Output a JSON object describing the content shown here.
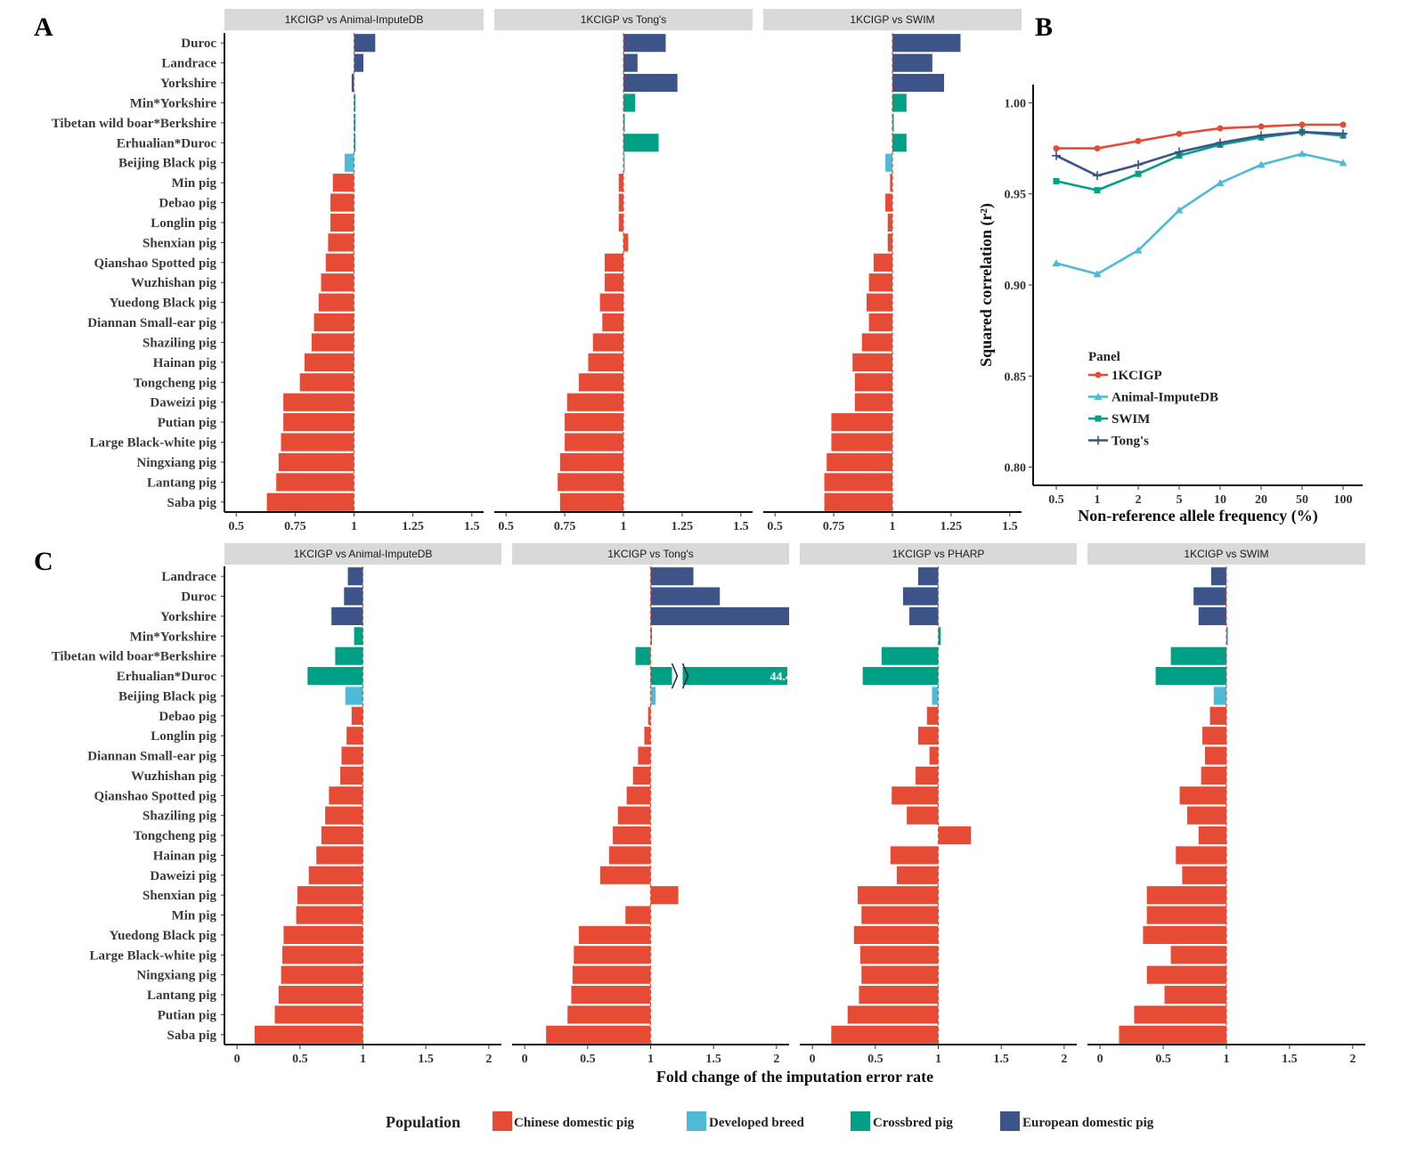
{
  "figure": {
    "panel_letters": [
      "A",
      "B",
      "C"
    ],
    "legend": {
      "title": "Population",
      "items": [
        {
          "label": "Chinese domestic pig",
          "color": "#E64B35"
        },
        {
          "label": "Developed breed",
          "color": "#4DBBD5"
        },
        {
          "label": "Crossbred pig",
          "color": "#00A087"
        },
        {
          "label": "European domestic pig",
          "color": "#3C5488"
        }
      ]
    }
  },
  "chart_data": [
    {
      "id": "A",
      "type": "bar",
      "orientation": "horizontal",
      "reference_line": 1,
      "xlim": [
        0.45,
        1.55
      ],
      "xticks": [
        0.5,
        0.75,
        1,
        1.25,
        1.5
      ],
      "xtick_labels": [
        "0.5",
        "0.75",
        "1",
        "1.25",
        "1.5"
      ],
      "categories": [
        "Duroc",
        "Landrace",
        "Yorkshire",
        "Min*Yorkshire",
        "Tibetan wild boar*Berkshire",
        "Erhualian*Duroc",
        "Beijing Black pig",
        "Min pig",
        "Debao pig",
        "Longlin pig",
        "Shenxian pig",
        "Qianshao Spotted pig",
        "Wuzhishan pig",
        "Yuedong Black pig",
        "Diannan Small-ear pig",
        "Shaziling pig",
        "Hainan pig",
        "Tongcheng pig",
        "Daweizi pig",
        "Putian pig",
        "Large Black-white pig",
        "Ningxiang pig",
        "Lantang pig",
        "Saba pig"
      ],
      "groups": [
        "European domestic pig",
        "European domestic pig",
        "European domestic pig",
        "Crossbred pig",
        "Crossbred pig",
        "Crossbred pig",
        "Developed breed",
        "Chinese domestic pig",
        "Chinese domestic pig",
        "Chinese domestic pig",
        "Chinese domestic pig",
        "Chinese domestic pig",
        "Chinese domestic pig",
        "Chinese domestic pig",
        "Chinese domestic pig",
        "Chinese domestic pig",
        "Chinese domestic pig",
        "Chinese domestic pig",
        "Chinese domestic pig",
        "Chinese domestic pig",
        "Chinese domestic pig",
        "Chinese domestic pig",
        "Chinese domestic pig",
        "Chinese domestic pig"
      ],
      "facets": [
        {
          "label": "1KCIGP vs Animal-ImputeDB",
          "values": [
            1.09,
            1.04,
            0.99,
            1.0,
            1.0,
            1.0,
            0.96,
            0.91,
            0.9,
            0.9,
            0.89,
            0.88,
            0.86,
            0.85,
            0.83,
            0.82,
            0.79,
            0.77,
            0.7,
            0.7,
            0.69,
            0.68,
            0.67,
            0.63
          ]
        },
        {
          "label": "1KCIGP vs Tong's",
          "values": [
            1.18,
            1.06,
            1.23,
            1.05,
            1.0,
            1.15,
            1.0,
            0.98,
            0.98,
            0.98,
            1.02,
            0.92,
            0.92,
            0.9,
            0.91,
            0.87,
            0.85,
            0.81,
            0.76,
            0.75,
            0.75,
            0.73,
            0.72,
            0.73
          ]
        },
        {
          "label": "1KCIGP vs SWIM",
          "values": [
            1.29,
            1.17,
            1.22,
            1.06,
            1.0,
            1.06,
            0.97,
            0.99,
            0.97,
            0.98,
            0.98,
            0.92,
            0.9,
            0.89,
            0.9,
            0.87,
            0.83,
            0.84,
            0.84,
            0.74,
            0.74,
            0.72,
            0.71,
            0.71
          ]
        }
      ]
    },
    {
      "id": "B",
      "type": "line",
      "xlabel": "Non-reference allele frequency (%)",
      "ylabel": "Squared correlation (r²)",
      "categories": [
        "0.5",
        "1",
        "2",
        "5",
        "10",
        "20",
        "50",
        "100"
      ],
      "ylim": [
        0.79,
        1.01
      ],
      "yticks": [
        0.8,
        0.85,
        0.9,
        0.95,
        1.0
      ],
      "ytick_labels": [
        "0.80",
        "0.85",
        "0.90",
        "0.95",
        "1.00"
      ],
      "legend_title": "Panel",
      "legend_position": "inside-bottom-left",
      "series": [
        {
          "name": "1KCIGP",
          "color": "#E64B35",
          "marker": "circle",
          "values": [
            0.975,
            0.975,
            0.979,
            0.983,
            0.986,
            0.987,
            0.988,
            0.988
          ]
        },
        {
          "name": "Animal-ImputeDB",
          "color": "#4DBBD5",
          "marker": "triangle",
          "values": [
            0.912,
            0.906,
            0.919,
            0.941,
            0.956,
            0.966,
            0.972,
            0.967
          ]
        },
        {
          "name": "SWIM",
          "color": "#00A087",
          "marker": "square",
          "values": [
            0.957,
            0.952,
            0.961,
            0.971,
            0.977,
            0.981,
            0.984,
            0.982
          ]
        },
        {
          "name": "Tong's",
          "color": "#3C5488",
          "marker": "cross",
          "values": [
            0.971,
            0.96,
            0.966,
            0.973,
            0.978,
            0.982,
            0.984,
            0.983
          ]
        }
      ]
    },
    {
      "id": "C",
      "type": "bar",
      "orientation": "horizontal",
      "reference_line": 1,
      "xlim": [
        -0.1,
        2.1
      ],
      "xticks": [
        0,
        0.5,
        1,
        1.5,
        2
      ],
      "xtick_labels": [
        "0",
        "0.5",
        "1",
        "1.5",
        "2"
      ],
      "xlabel": "Fold change of the imputation error rate",
      "categories": [
        "Landrace",
        "Duroc",
        "Yorkshire",
        "Min*Yorkshire",
        "Tibetan wild boar*Berkshire",
        "Erhualian*Duroc",
        "Beijing Black pig",
        "Debao pig",
        "Longlin pig",
        "Diannan Small-ear pig",
        "Wuzhishan pig",
        "Qianshao Spotted pig",
        "Shaziling pig",
        "Tongcheng pig",
        "Hainan pig",
        "Daweizi pig",
        "Shenxian pig",
        "Min pig",
        "Yuedong Black pig",
        "Large Black-white pig",
        "Ningxiang pig",
        "Lantang pig",
        "Putian pig",
        "Saba pig"
      ],
      "groups": [
        "European domestic pig",
        "European domestic pig",
        "European domestic pig",
        "Crossbred pig",
        "Crossbred pig",
        "Crossbred pig",
        "Developed breed",
        "Chinese domestic pig",
        "Chinese domestic pig",
        "Chinese domestic pig",
        "Chinese domestic pig",
        "Chinese domestic pig",
        "Chinese domestic pig",
        "Chinese domestic pig",
        "Chinese domestic pig",
        "Chinese domestic pig",
        "Chinese domestic pig",
        "Chinese domestic pig",
        "Chinese domestic pig",
        "Chinese domestic pig",
        "Chinese domestic pig",
        "Chinese domestic pig",
        "Chinese domestic pig",
        "Chinese domestic pig"
      ],
      "facets": [
        {
          "label": "1KCIGP vs Animal-ImputeDB",
          "values": [
            0.88,
            0.85,
            0.75,
            0.93,
            0.78,
            0.56,
            0.86,
            0.91,
            0.87,
            0.83,
            0.82,
            0.73,
            0.7,
            0.67,
            0.63,
            0.57,
            0.48,
            0.47,
            0.37,
            0.36,
            0.35,
            0.33,
            0.3,
            0.14
          ]
        },
        {
          "label": "1KCIGP vs Tong's",
          "values": [
            1.34,
            1.55,
            2.28,
            1.01,
            0.88,
            44.4,
            1.04,
            0.98,
            0.95,
            0.9,
            0.86,
            0.81,
            0.74,
            0.7,
            0.67,
            0.6,
            1.22,
            0.8,
            0.43,
            0.39,
            0.38,
            0.37,
            0.34,
            0.17
          ]
        },
        {
          "label": "1KCIGP vs PHARP",
          "values": [
            0.84,
            0.72,
            0.77,
            1.02,
            0.55,
            0.4,
            0.95,
            0.91,
            0.84,
            0.93,
            0.82,
            0.63,
            0.75,
            1.26,
            0.62,
            0.67,
            0.36,
            0.39,
            0.33,
            0.38,
            0.39,
            0.37,
            0.28,
            0.15
          ]
        },
        {
          "label": "1KCIGP vs SWIM",
          "values": [
            0.88,
            0.74,
            0.78,
            1.01,
            0.56,
            0.44,
            0.9,
            0.87,
            0.81,
            0.83,
            0.8,
            0.63,
            0.69,
            0.78,
            0.6,
            0.65,
            0.37,
            0.37,
            0.34,
            0.56,
            0.37,
            0.51,
            0.27,
            0.15
          ]
        }
      ],
      "break_annotation": {
        "facet": 1,
        "category": "Erhualian*Duroc",
        "text": "44.40"
      }
    }
  ]
}
